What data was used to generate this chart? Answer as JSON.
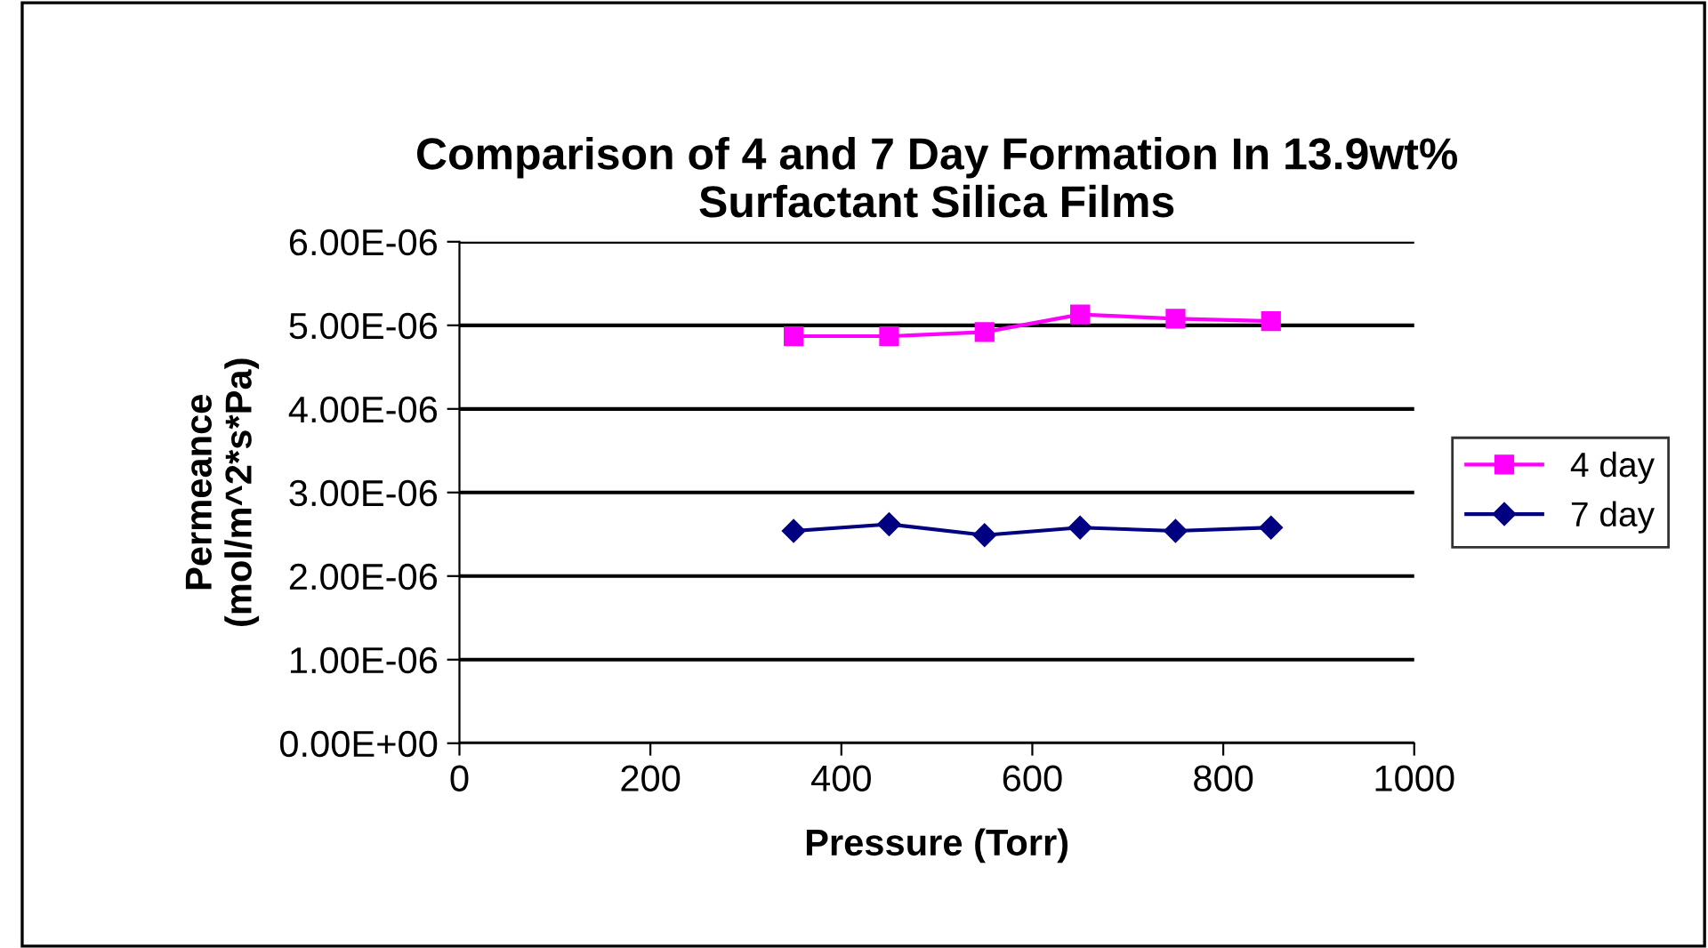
{
  "chart_data": {
    "type": "line",
    "title": "Comparison of 4 and 7 Day Formation In 13.9wt%\nSurfactant Silica Films",
    "xlabel": "Pressure (Torr)",
    "ylabel": "Permeance\n(mol/m^2*s*Pa)",
    "x": [
      350,
      450,
      550,
      650,
      750,
      850
    ],
    "series": [
      {
        "name": "4 day",
        "color": "#ff00ff",
        "marker": "square",
        "values": [
          4.87e-06,
          4.87e-06,
          4.92e-06,
          5.13e-06,
          5.08e-06,
          5.05e-06
        ]
      },
      {
        "name": "7 day",
        "color": "#000080",
        "marker": "diamond",
        "values": [
          2.54e-06,
          2.62e-06,
          2.49e-06,
          2.58e-06,
          2.54e-06,
          2.58e-06
        ]
      }
    ],
    "xlim": [
      0,
      1000
    ],
    "xticks": [
      0,
      200,
      400,
      600,
      800,
      1000
    ],
    "ylim": [
      0,
      6e-06
    ],
    "yticks": [
      {
        "value": 0,
        "label": "0.00E+00"
      },
      {
        "value": 1e-06,
        "label": "1.00E-06"
      },
      {
        "value": 2e-06,
        "label": "2.00E-06"
      },
      {
        "value": 3e-06,
        "label": "3.00E-06"
      },
      {
        "value": 4e-06,
        "label": "4.00E-06"
      },
      {
        "value": 5e-06,
        "label": "5.00E-06"
      },
      {
        "value": 6e-06,
        "label": "6.00E-06"
      }
    ],
    "grid": "y",
    "legend": "right",
    "line_style": "solid"
  }
}
